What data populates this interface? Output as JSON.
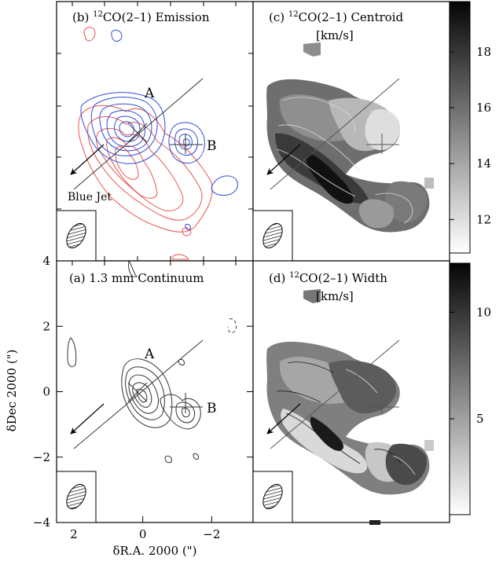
{
  "figure": {
    "y_axis_label": "δDec 2000 (\")",
    "x_axis_label": "δR.A. 2000 (\")"
  },
  "panels": {
    "b": {
      "label_prefix": "(b) ",
      "iso": "12",
      "label_suffix": "CO(2–1) Emission",
      "source_a": "A",
      "source_b": "B",
      "jet_label": "Blue Jet"
    },
    "c": {
      "label_prefix": "(c) ",
      "iso": "12",
      "label_suffix": "CO(2–1) Centroid",
      "unit": "[km/s]"
    },
    "a": {
      "label_text": "(a) 1.3 mm Continuum",
      "source_a": "A",
      "source_b": "B"
    },
    "d": {
      "label_prefix": "(d) ",
      "iso": "12",
      "label_suffix": "CO(2–1) Width",
      "unit": "[km/s]"
    }
  },
  "colors": {
    "blueshifted": "#2f4fd8",
    "redshifted": "#e8534f",
    "contour": "#333333"
  },
  "chart_data": [
    {
      "panel": "a",
      "type": "contour",
      "title": "(a) 1.3 mm Continuum",
      "xlabel": "δR.A. 2000 (\")",
      "ylabel": "δDec 2000 (\")",
      "xlim": [
        2.5,
        -3.2
      ],
      "ylim": [
        -4,
        4
      ],
      "x_ticks": [
        2,
        0,
        -2
      ],
      "y_ticks": [
        4,
        2,
        0,
        -2,
        -4
      ],
      "sources": [
        {
          "name": "A",
          "x": 0,
          "y": 0
        },
        {
          "name": "B",
          "x": -1.4,
          "y": -0.55
        }
      ]
    },
    {
      "panel": "b",
      "type": "contour",
      "title": "(b) 12CO(2-1) Emission",
      "series": [
        {
          "name": "blueshifted",
          "color": "#2f4fd8"
        },
        {
          "name": "redshifted",
          "color": "#e8534f"
        }
      ],
      "annotations": [
        "A",
        "B",
        "Blue Jet"
      ]
    },
    {
      "panel": "c",
      "type": "heatmap",
      "title": "(c) 12CO(2-1) Centroid",
      "colorbar_unit": "[km/s]",
      "colorbar_ticks": [
        12,
        14,
        16,
        18
      ],
      "colorbar_range": [
        10.8,
        19.8
      ]
    },
    {
      "panel": "d",
      "type": "heatmap",
      "title": "(d) 12CO(2-1) Width",
      "colorbar_unit": "[km/s]",
      "colorbar_ticks": [
        5,
        10
      ],
      "colorbar_range": [
        0.5,
        12.3
      ]
    }
  ]
}
